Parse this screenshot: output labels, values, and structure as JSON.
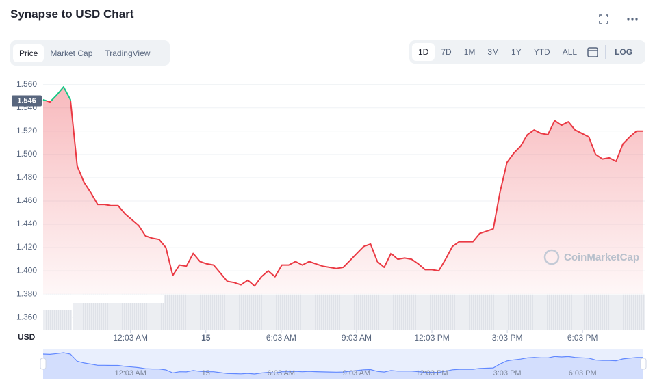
{
  "header": {
    "title": "Synapse to USD Chart",
    "tabs": [
      "Price",
      "Market Cap",
      "TradingView"
    ],
    "ranges": [
      "1D",
      "7D",
      "1M",
      "3M",
      "1Y",
      "YTD",
      "ALL"
    ],
    "log": "LOG"
  },
  "chart_data": {
    "type": "line",
    "y_label": "USD",
    "watermark": "CoinMarketCap",
    "color": "#ea3943",
    "up_color": "#16c784",
    "current": {
      "value": 1.546,
      "label": "1.546"
    },
    "xlim": [
      -3.43,
      20.47
    ],
    "ylim": [
      1.349,
      1.568
    ],
    "xticks": [
      {
        "value": 0.05,
        "label": "12:03 AM"
      },
      {
        "value": 3.05,
        "label": "15"
      },
      {
        "value": 6.05,
        "label": "6:03 AM"
      },
      {
        "value": 9.05,
        "label": "9:03 AM"
      },
      {
        "value": 12.05,
        "label": "12:03 PM"
      },
      {
        "value": 15.05,
        "label": "3:03 PM"
      },
      {
        "value": 18.05,
        "label": "6:03 PM"
      }
    ],
    "yticks": [
      {
        "value": 1.36,
        "label": "1.360"
      },
      {
        "value": 1.38,
        "label": "1.380"
      },
      {
        "value": 1.4,
        "label": "1.400"
      },
      {
        "value": 1.42,
        "label": "1.420"
      },
      {
        "value": 1.44,
        "label": "1.440"
      },
      {
        "value": 1.46,
        "label": "1.460"
      },
      {
        "value": 1.48,
        "label": "1.480"
      },
      {
        "value": 1.5,
        "label": "1.500"
      },
      {
        "value": 1.52,
        "label": "1.520"
      },
      {
        "value": 1.54,
        "label": "1.540"
      },
      {
        "value": 1.56,
        "label": "1.560"
      }
    ],
    "grid": true,
    "values": [
      1.547,
      1.545,
      1.551,
      1.558,
      1.547,
      1.49,
      1.476,
      1.467,
      1.457,
      1.457,
      1.456,
      1.456,
      1.449,
      1.444,
      1.439,
      1.43,
      1.428,
      1.427,
      1.42,
      1.396,
      1.405,
      1.404,
      1.415,
      1.408,
      1.406,
      1.405,
      1.398,
      1.391,
      1.39,
      1.388,
      1.392,
      1.387,
      1.395,
      1.4,
      1.395,
      1.405,
      1.405,
      1.408,
      1.405,
      1.408,
      1.406,
      1.404,
      1.403,
      1.402,
      1.403,
      1.409,
      1.415,
      1.421,
      1.423,
      1.408,
      1.403,
      1.415,
      1.41,
      1.411,
      1.41,
      1.406,
      1.401,
      1.401,
      1.4,
      1.41,
      1.421,
      1.425,
      1.425,
      1.425,
      1.432,
      1.434,
      1.436,
      1.468,
      1.493,
      1.501,
      1.507,
      1.517,
      1.521,
      1.518,
      1.517,
      1.529,
      1.525,
      1.528,
      1.521,
      1.518,
      1.515,
      1.5,
      1.496,
      1.497,
      1.494,
      1.509,
      1.515,
      1.52,
      1.52
    ]
  }
}
